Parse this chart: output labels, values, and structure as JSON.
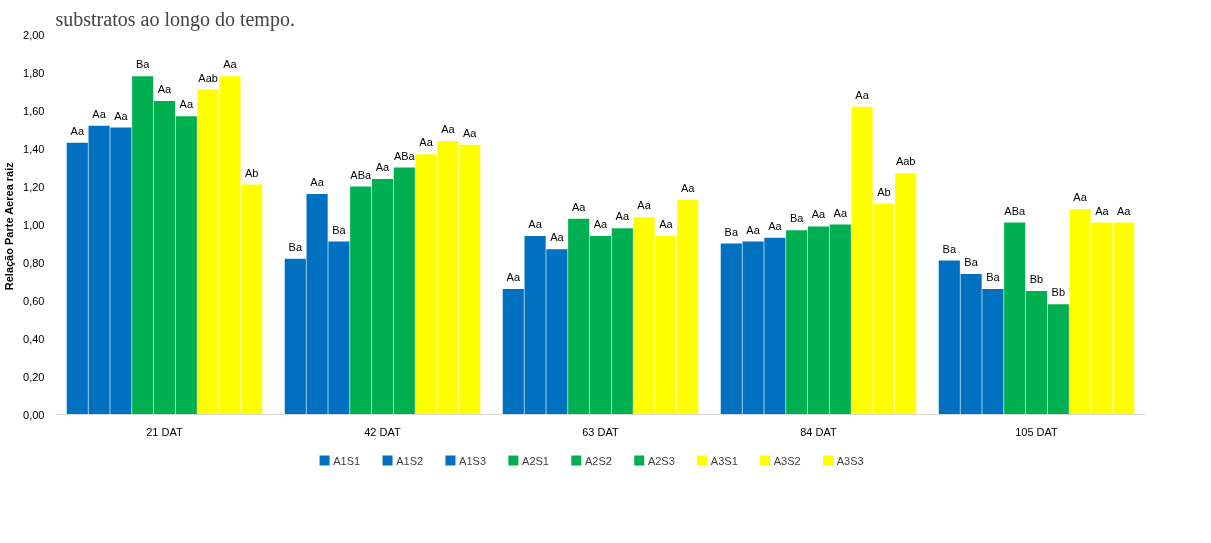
{
  "chart_data": {
    "type": "bar",
    "title": "substratos ao longo do tempo.",
    "ylabel": "Relação  Parte Aerea raiz",
    "categories": [
      "21 DAT",
      "42 DAT",
      "63 DAT",
      "84 DAT",
      "105 DAT"
    ],
    "ylim": [
      0,
      2
    ],
    "yticks": [
      {
        "value": 0,
        "label": "0,00"
      },
      {
        "value": 0.2,
        "label": "0,20"
      },
      {
        "value": 0.4,
        "label": "0,40"
      },
      {
        "value": 0.6,
        "label": "0,60"
      },
      {
        "value": 0.8,
        "label": "0,80"
      },
      {
        "value": 1.0,
        "label": "1,00"
      },
      {
        "value": 1.2,
        "label": "1,20"
      },
      {
        "value": 1.4,
        "label": "1,40"
      },
      {
        "value": 1.6,
        "label": "1,60"
      },
      {
        "value": 1.8,
        "label": "1,80"
      },
      {
        "value": 2.0,
        "label": "2,00"
      }
    ],
    "legend": "bottom",
    "series": [
      {
        "name": "A1S1",
        "color": "#0070c0",
        "values": [
          1.43,
          0.82,
          0.66,
          0.9,
          0.81
        ],
        "value_labels": [
          "Aa",
          "Ba",
          "Aa",
          "Ba",
          "Ba"
        ]
      },
      {
        "name": "A1S2",
        "color": "#0070c0",
        "values": [
          1.52,
          1.16,
          0.94,
          0.91,
          0.74
        ],
        "value_labels": [
          "Aa",
          "Aa",
          "Aa",
          "Aa",
          "Ba"
        ]
      },
      {
        "name": "A1S3",
        "color": "#0070c0",
        "values": [
          1.51,
          0.91,
          0.87,
          0.93,
          0.66
        ],
        "value_labels": [
          "Aa",
          "Ba",
          "Aa",
          "Aa",
          "Ba"
        ]
      },
      {
        "name": "A2S1",
        "color": "#00b050",
        "values": [
          1.78,
          1.2,
          1.03,
          0.97,
          1.01
        ],
        "value_labels": [
          "Ba",
          "ABa",
          "Aa",
          "Ba",
          "ABa"
        ]
      },
      {
        "name": "A2S2",
        "color": "#00b050",
        "values": [
          1.65,
          1.24,
          0.94,
          0.99,
          0.65
        ],
        "value_labels": [
          "Aa",
          "Aa",
          "Aa",
          "Aa",
          "Bb"
        ]
      },
      {
        "name": "A2S3",
        "color": "#00b050",
        "values": [
          1.57,
          1.3,
          0.98,
          1.0,
          0.58
        ],
        "value_labels": [
          "Aa",
          "ABa",
          "Aa",
          "Aa",
          "Bb"
        ]
      },
      {
        "name": "A3S1",
        "color": "#ffff00",
        "values": [
          1.71,
          1.37,
          1.04,
          1.62,
          1.08
        ],
        "value_labels": [
          "Aab",
          "Aa",
          "Aa",
          "Aa",
          "Aa"
        ]
      },
      {
        "name": "A3S2",
        "color": "#ffff00",
        "values": [
          1.78,
          1.44,
          0.94,
          1.11,
          1.01
        ],
        "value_labels": [
          "Aa",
          "Aa",
          "Aa",
          "Ab",
          "Aa"
        ]
      },
      {
        "name": "A3S3",
        "color": "#ffff00",
        "values": [
          1.21,
          1.42,
          1.13,
          1.27,
          1.01
        ],
        "value_labels": [
          "Ab",
          "Aa",
          "Aa",
          "Aab",
          "Aa"
        ]
      }
    ]
  }
}
